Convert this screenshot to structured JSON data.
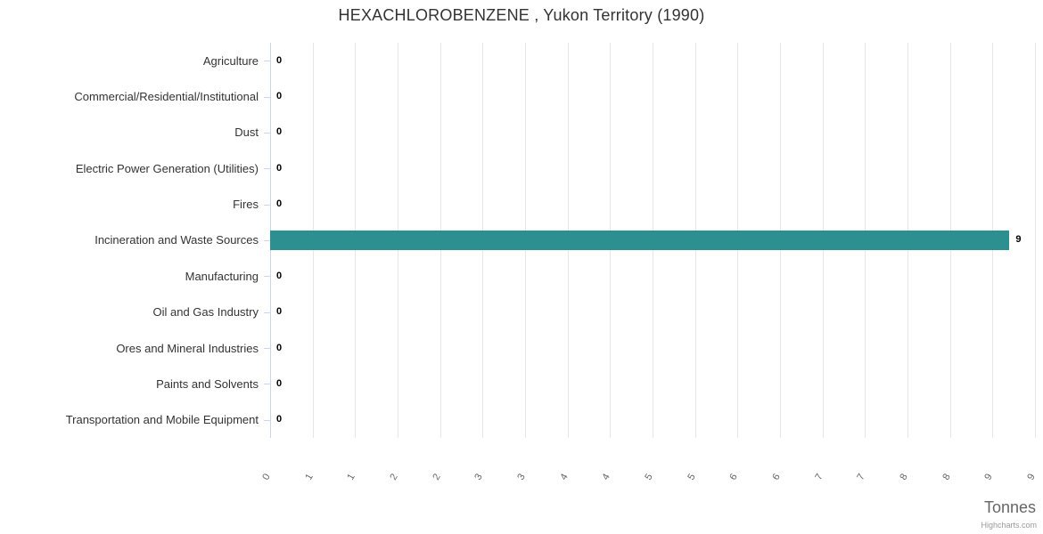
{
  "chart": {
    "title": "HEXACHLOROBENZENE , Yukon Territory (1990)",
    "credit_label": "Highcharts.com"
  },
  "chart_data": {
    "type": "bar",
    "orientation": "horizontal",
    "title": "HEXACHLOROBENZENE , Yukon Territory (1990)",
    "categories": [
      "Agriculture",
      "Commercial/Residential/Institutional",
      "Dust",
      "Electric Power Generation (Utilities)",
      "Fires",
      "Incineration and Waste Sources",
      "Manufacturing",
      "Oil and Gas Industry",
      "Ores and Mineral Industries",
      "Paints and Solvents",
      "Transportation and Mobile Equipment"
    ],
    "values": [
      0,
      0,
      0,
      0,
      0,
      8.7,
      0,
      0,
      0,
      0,
      0
    ],
    "data_labels": [
      "0",
      "0",
      "0",
      "0",
      "0",
      "9",
      "0",
      "0",
      "0",
      "0",
      "0"
    ],
    "xlabel": "Tonnes",
    "ylabel": "",
    "xlim": [
      0,
      9
    ],
    "tick_interval": 0.5,
    "x_tick_labels": [
      "0",
      "1",
      "1",
      "2",
      "2",
      "3",
      "3",
      "4",
      "4",
      "5",
      "5",
      "6",
      "6",
      "7",
      "7",
      "8",
      "8",
      "9",
      "9"
    ],
    "x_tick_label_rotation_deg": -60,
    "grid": true,
    "legend": "none",
    "bar_color": "#2b908f",
    "gridline_color": "#e6e6e6",
    "axis_line_color": "#ccd6eb"
  }
}
